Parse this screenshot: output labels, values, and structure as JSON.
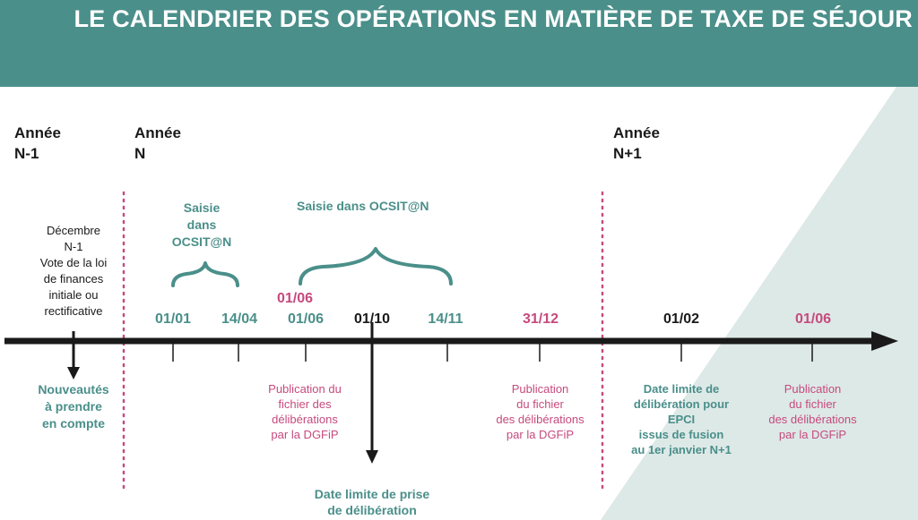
{
  "header": {
    "title": "LE CALENDRIER DES OPÉRATIONS EN MATIÈRE DE TAXE DE SÉJOUR",
    "color": "#4a8f8a"
  },
  "years": {
    "prev": "Année\nN-1",
    "current": "Année\nN",
    "next": "Année\nN+1"
  },
  "december_note": "Décembre\nN-1\nVote de la loi\nde finances\ninitiale ou\nrectificative",
  "saisie_1": "Saisie\ndans\nOCSIT@N",
  "saisie_2": "Saisie dans OCSIT@N",
  "dates": {
    "d0101": "01/01",
    "d1404": "14/04",
    "d0106_pink": "01/06",
    "d0106_teal": "01/06",
    "d0110": "01/10",
    "d1411": "14/11",
    "d3112": "31/12",
    "d0102": "01/02",
    "d0106_next": "01/06"
  },
  "labels": {
    "nouveautes": "Nouveautés\nà prendre\nen compte",
    "publication_1": "Publication du\nfichier des\ndélibérations\npar la DGFiP",
    "publication_2": "Publication\ndu fichier\ndes délibérations\npar la DGFiP",
    "epci": "Date limite de\ndélibération pour\nEPCI\nissus de fusion\nau 1er janvier N+1",
    "publication_3": "Publication\ndu fichier\ndes délibérations\npar la DGFiP",
    "date_limite": "Date limite de prise\nde délibération"
  },
  "colors": {
    "teal": "#4a8f8a",
    "pink": "#c64a7e",
    "dark": "#1a1a1a",
    "background_tint": "#dde9e7"
  }
}
